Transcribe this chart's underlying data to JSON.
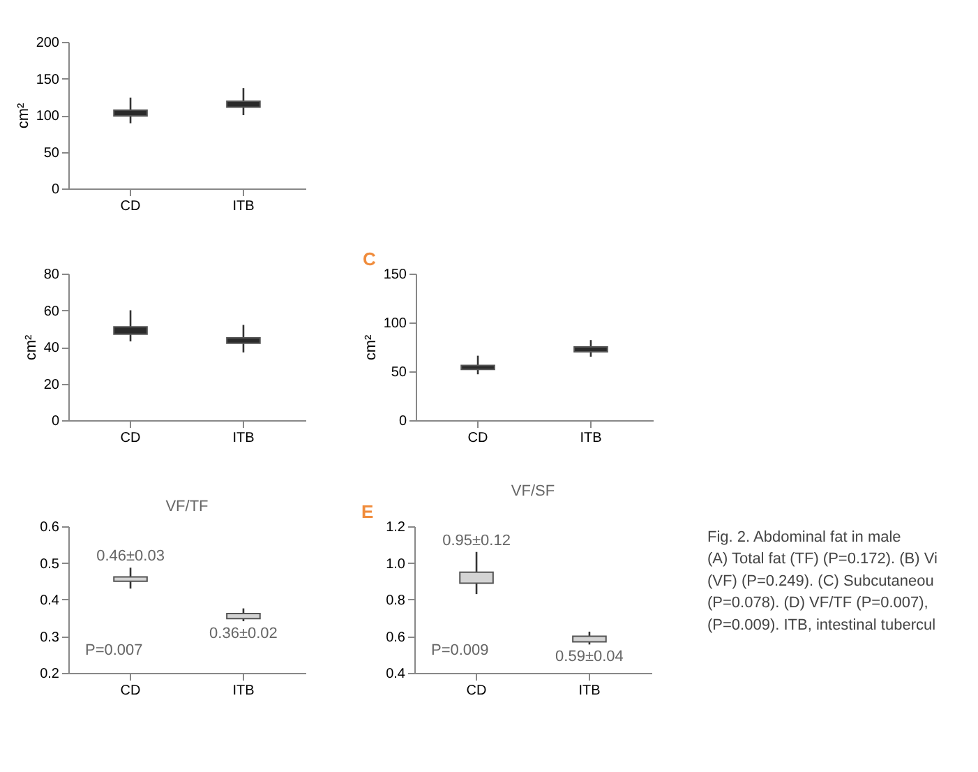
{
  "chart_data": [
    {
      "type": "box",
      "ylabel": "cm²",
      "categories": [
        "CD",
        "ITB"
      ],
      "color": "#2b2b2b",
      "ylim": [
        0,
        200
      ],
      "yticks": [
        0,
        50,
        100,
        150,
        200
      ],
      "boxes": [
        {
          "low": 89,
          "q1": 99,
          "median": 103,
          "q3": 107,
          "high": 124
        },
        {
          "low": 100,
          "q1": 111,
          "median": 115,
          "q3": 119,
          "high": 137
        }
      ]
    },
    {
      "type": "box",
      "ylabel": "cm²",
      "categories": [
        "CD",
        "ITB"
      ],
      "color": "#2b2b2b",
      "ylim": [
        0,
        80
      ],
      "yticks": [
        0,
        20,
        40,
        60,
        80
      ],
      "boxes": [
        {
          "low": 43,
          "q1": 47,
          "median": 49,
          "q3": 51,
          "high": 60
        },
        {
          "low": 37,
          "q1": 42,
          "median": 43.5,
          "q3": 45,
          "high": 52
        }
      ]
    },
    {
      "type": "box",
      "ylabel": "cm²",
      "categories": [
        "CD",
        "ITB"
      ],
      "color": "#2b2b2b",
      "ylim": [
        0,
        150
      ],
      "yticks": [
        0,
        50,
        100,
        150
      ],
      "annotations": [
        "C"
      ],
      "boxes": [
        {
          "low": 47,
          "q1": 52,
          "median": 54,
          "q3": 56,
          "high": 66
        },
        {
          "low": 65,
          "q1": 70,
          "median": 72.5,
          "q3": 75,
          "high": 82
        }
      ]
    },
    {
      "type": "box",
      "title": "VF/TF",
      "categories": [
        "CD",
        "ITB"
      ],
      "color": "#d4d4d4",
      "ylim": [
        0.2,
        0.6
      ],
      "yticks": [
        0.2,
        0.3,
        0.4,
        0.5,
        0.6
      ],
      "annotations": [
        "0.46±0.03",
        "0.36±0.02",
        "P=0.007"
      ],
      "boxes": [
        {
          "low": 0.43,
          "q1": 0.45,
          "median": 0.456,
          "q3": 0.462,
          "high": 0.487
        },
        {
          "low": 0.341,
          "q1": 0.348,
          "median": 0.355,
          "q3": 0.362,
          "high": 0.376
        }
      ]
    },
    {
      "type": "box",
      "title": "VF/SF",
      "categories": [
        "CD",
        "ITB"
      ],
      "color": "#d4d4d4",
      "ylim": [
        0.4,
        1.2
      ],
      "yticks": [
        {
          "value": 0.4,
          "label": "0.4"
        },
        {
          "value": 0.6,
          "label": "0.6"
        },
        {
          "value": 0.8,
          "label": "0.8"
        },
        {
          "value": 1.0,
          "label": "1.0"
        },
        {
          "value": 1.2,
          "label": "1.2"
        }
      ],
      "annotations": [
        "E",
        "0.95±0.12",
        "0.59±0.04",
        "P=0.009"
      ],
      "boxes": [
        {
          "low": 0.83,
          "q1": 0.89,
          "median": 0.92,
          "q3": 0.95,
          "high": 1.06
        },
        {
          "low": 0.555,
          "q1": 0.57,
          "median": 0.585,
          "q3": 0.6,
          "high": 0.625
        }
      ]
    },
    {
      "type": "other",
      "annotations": [
        "Fig. 2. Abdominal fat in male",
        "(A) Total fat (TF) (P=0.172). (B) Vi",
        "(VF) (P=0.249). (C) Subcutaneou",
        "(P=0.078). (D) VF/TF (P=0.007),",
        "(P=0.009). ITB, intestinal tubercul"
      ]
    }
  ]
}
